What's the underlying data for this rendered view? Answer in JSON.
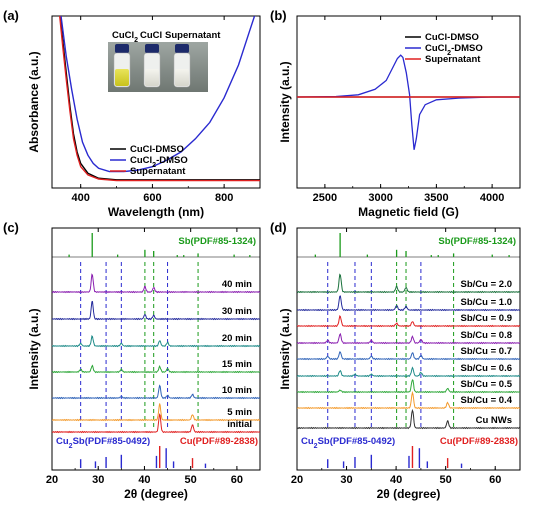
{
  "colors": {
    "black": "#000000",
    "blue": "#2a2ad0",
    "red": "#e02020",
    "green": "#1a9a1a",
    "orange": "#f39a2c",
    "purple": "#8a1fb0",
    "navy": "#232a9c",
    "teal": "#1d8a88",
    "lightgreen": "#2fa83a",
    "steelblue": "#2f63b8",
    "crimson": "#d62a4a",
    "darkgreen": "#18703a",
    "gray": "#303030"
  },
  "chart_data": [
    {
      "panel": "(a)",
      "type": "line",
      "xlabel": "Wavelength (nm)",
      "ylabel": "Absorbance (a.u.)",
      "xlim": [
        320,
        900
      ],
      "xticks": [
        400,
        600,
        800
      ],
      "yticks_shown": false,
      "inset_labels": [
        "CuCl",
        "2",
        "CuCl",
        "Supernatant"
      ],
      "legend_position": "bottom-right",
      "series": [
        {
          "name": "CuCl-DMSO",
          "color": "#000000",
          "x": [
            330,
            340,
            350,
            360,
            370,
            380,
            390,
            400,
            420,
            450,
            500,
            600,
            700,
            800,
            900
          ],
          "y": [
            1.3,
            1.1,
            0.9,
            0.7,
            0.5,
            0.33,
            0.22,
            0.15,
            0.09,
            0.06,
            0.05,
            0.05,
            0.05,
            0.05,
            0.05
          ]
        },
        {
          "name": "CuCl",
          "name_sub": "2",
          "name_suffix": "-DMSO",
          "color": "#2a2ad0",
          "x": [
            330,
            345,
            360,
            375,
            390,
            405,
            420,
            435,
            450,
            480,
            520,
            560,
            600,
            640,
            680,
            720,
            760,
            800,
            840,
            870,
            900
          ],
          "y": [
            1.3,
            1.05,
            0.8,
            0.6,
            0.42,
            0.28,
            0.2,
            0.15,
            0.12,
            0.1,
            0.1,
            0.11,
            0.13,
            0.17,
            0.22,
            0.3,
            0.4,
            0.55,
            0.75,
            0.95,
            1.15
          ]
        },
        {
          "name": "Supernatant",
          "color": "#e02020",
          "x": [
            330,
            340,
            350,
            360,
            370,
            380,
            390,
            400,
            420,
            450,
            500,
            600,
            700,
            800,
            900
          ],
          "y": [
            1.3,
            1.08,
            0.86,
            0.66,
            0.47,
            0.3,
            0.2,
            0.13,
            0.08,
            0.055,
            0.045,
            0.045,
            0.045,
            0.045,
            0.045
          ]
        }
      ]
    },
    {
      "panel": "(b)",
      "type": "line",
      "xlabel": "Magnetic field (G)",
      "ylabel": "Intensity (a.u.)",
      "xlim": [
        2250,
        4250
      ],
      "xticks": [
        2500,
        3000,
        3500,
        4000
      ],
      "yticks_shown": false,
      "legend_position": "top-right",
      "series": [
        {
          "name": "CuCl-DMSO",
          "color": "#000000",
          "x": [
            2250,
            4250
          ],
          "y": [
            0,
            0
          ]
        },
        {
          "name": "CuCl",
          "name_sub": "2",
          "name_suffix": "-DMSO",
          "color": "#2a2ad0",
          "x": [
            2250,
            2600,
            2800,
            2950,
            3050,
            3100,
            3150,
            3180,
            3200,
            3230,
            3260,
            3280,
            3300,
            3320,
            3350,
            3400,
            3500,
            3700,
            4000,
            4250
          ],
          "y": [
            0,
            0.005,
            0.02,
            0.07,
            0.15,
            0.25,
            0.35,
            0.38,
            0.36,
            0.22,
            0.02,
            -0.25,
            -0.48,
            -0.38,
            -0.16,
            -0.07,
            -0.025,
            -0.01,
            0,
            0
          ]
        },
        {
          "name": "Supernatant",
          "color": "#e02020",
          "x": [
            2250,
            4250
          ],
          "y": [
            0,
            0
          ]
        }
      ]
    },
    {
      "panel": "(c)",
      "type": "line",
      "xlabel": "2θ (degree)",
      "ylabel": "Intensity (a.u.)",
      "xlim": [
        20,
        65
      ],
      "xticks": [
        20,
        30,
        40,
        50,
        60
      ],
      "yticks_shown": false,
      "reference_top": {
        "label": "Sb(PDF#85-1324)",
        "color": "#1a9a1a",
        "peaks": [
          23.7,
          28.7,
          34.2,
          40.1,
          42.0,
          47.1,
          48.5,
          51.6,
          59.4,
          62.8
        ],
        "heights": [
          0.1,
          1.0,
          0.1,
          0.3,
          0.25,
          0.08,
          0.08,
          0.15,
          0.1,
          0.08
        ]
      },
      "reference_bottom": [
        {
          "label": "Cu",
          "label_sub": "2",
          "label_suffix": "Sb(PDF#85-0492)",
          "color": "#2a2ad0",
          "peaks": [
            26.2,
            29.4,
            31.7,
            35.0,
            42.6,
            44.7,
            46.3,
            53.2
          ],
          "heights": [
            0.4,
            0.3,
            0.5,
            0.6,
            0.55,
            0.9,
            0.3,
            0.2
          ]
        },
        {
          "label": "Cu(PDF#89-2838)",
          "color": "#e02020",
          "peaks": [
            43.3,
            50.4
          ],
          "heights": [
            1.0,
            0.45
          ]
        }
      ],
      "dashed_lines": [
        {
          "color": "#1a9a1a",
          "x": [
            40.1,
            42.0,
            51.6
          ]
        },
        {
          "color": "#2a2ad0",
          "x": [
            26.2,
            31.7,
            35.0,
            45.0
          ]
        }
      ],
      "series": [
        {
          "name": "40 min",
          "color": "#8a1fb0",
          "peaks": [
            28.7,
            40.1,
            42.0
          ],
          "heights": [
            1.0,
            0.3,
            0.25
          ]
        },
        {
          "name": "30 min",
          "color": "#232a9c",
          "peaks": [
            28.7,
            40.1,
            42.0
          ],
          "heights": [
            1.0,
            0.25,
            0.2
          ]
        },
        {
          "name": "20 min",
          "color": "#1d8a88",
          "peaks": [
            28.7,
            43.3,
            45.0,
            26.2,
            35.0
          ],
          "heights": [
            0.55,
            0.3,
            0.2,
            0.15,
            0.15
          ]
        },
        {
          "name": "15 min",
          "color": "#2fa83a",
          "peaks": [
            28.7,
            43.3,
            45.0,
            26.2,
            35.0
          ],
          "heights": [
            0.35,
            0.3,
            0.2,
            0.15,
            0.15
          ]
        },
        {
          "name": "10 min",
          "color": "#2f63b8",
          "peaks": [
            43.3,
            45.0,
            50.4,
            35.0
          ],
          "heights": [
            0.7,
            0.15,
            0.2,
            0.08
          ]
        },
        {
          "name": "5 min",
          "color": "#f39a2c",
          "peaks": [
            43.3,
            50.4
          ],
          "heights": [
            0.9,
            0.3
          ]
        },
        {
          "name": "initial",
          "color": "#e02020",
          "peaks": [
            43.3,
            50.4
          ],
          "heights": [
            1.0,
            0.4
          ]
        }
      ]
    },
    {
      "panel": "(d)",
      "type": "line",
      "xlabel": "2θ (degree)",
      "ylabel": "Intensity (a.u.)",
      "xlim": [
        20,
        65
      ],
      "xticks": [
        20,
        30,
        40,
        50,
        60
      ],
      "yticks_shown": false,
      "reference_top": {
        "label": "Sb(PDF#85-1324)",
        "color": "#1a9a1a",
        "peaks": [
          23.7,
          28.7,
          34.2,
          40.1,
          42.0,
          47.1,
          48.5,
          51.6,
          59.4,
          62.8
        ],
        "heights": [
          0.1,
          1.0,
          0.1,
          0.3,
          0.25,
          0.08,
          0.08,
          0.15,
          0.1,
          0.08
        ]
      },
      "reference_bottom": [
        {
          "label": "Cu",
          "label_sub": "2",
          "label_suffix": "Sb(PDF#85-0492)",
          "color": "#2a2ad0",
          "peaks": [
            26.2,
            29.4,
            31.7,
            35.0,
            42.6,
            44.7,
            46.3,
            53.2
          ],
          "heights": [
            0.4,
            0.3,
            0.5,
            0.6,
            0.55,
            0.9,
            0.3,
            0.2
          ]
        },
        {
          "label": "Cu(PDF#89-2838)",
          "color": "#e02020",
          "peaks": [
            43.3,
            50.4
          ],
          "heights": [
            1.0,
            0.45
          ]
        }
      ],
      "dashed_lines": [
        {
          "color": "#1a9a1a",
          "x": [
            40.1,
            42.0,
            51.6
          ]
        },
        {
          "color": "#2a2ad0",
          "x": [
            26.2,
            31.7,
            35.0,
            45.0
          ]
        }
      ],
      "series": [
        {
          "name": "Sb/Cu = 2.0",
          "color": "#18703a",
          "peaks": [
            28.7,
            40.1,
            42.0
          ],
          "heights": [
            1.0,
            0.3,
            0.25
          ]
        },
        {
          "name": "Sb/Cu = 1.0",
          "color": "#232a9c",
          "peaks": [
            28.7,
            40.1,
            42.0
          ],
          "heights": [
            0.8,
            0.25,
            0.2
          ]
        },
        {
          "name": "Sb/Cu = 0.9",
          "color": "#e02020",
          "peaks": [
            28.7,
            43.3,
            40.1
          ],
          "heights": [
            0.55,
            0.25,
            0.15
          ]
        },
        {
          "name": "Sb/Cu = 0.8",
          "color": "#8a1fb0",
          "peaks": [
            28.7,
            43.3,
            45.0,
            26.2,
            35.0
          ],
          "heights": [
            0.5,
            0.35,
            0.2,
            0.15,
            0.15
          ]
        },
        {
          "name": "Sb/Cu = 0.7",
          "color": "#2f63b8",
          "peaks": [
            28.7,
            43.3,
            45.0,
            26.2,
            35.0
          ],
          "heights": [
            0.4,
            0.35,
            0.2,
            0.15,
            0.15
          ]
        },
        {
          "name": "Sb/Cu = 0.6",
          "color": "#1d8a88",
          "peaks": [
            28.7,
            43.3,
            45.0,
            31.7,
            35.0
          ],
          "heights": [
            0.3,
            0.45,
            0.2,
            0.1,
            0.1
          ]
        },
        {
          "name": "Sb/Cu = 0.5",
          "color": "#2fa83a",
          "peaks": [
            43.3,
            50.4,
            28.7
          ],
          "heights": [
            0.7,
            0.2,
            0.1
          ]
        },
        {
          "name": "Sb/Cu = 0.4",
          "color": "#f39a2c",
          "peaks": [
            43.3,
            50.4
          ],
          "heights": [
            0.85,
            0.3
          ]
        },
        {
          "name": "Cu NWs",
          "color": "#303030",
          "peaks": [
            43.3,
            50.4
          ],
          "heights": [
            1.0,
            0.4
          ]
        }
      ]
    }
  ]
}
